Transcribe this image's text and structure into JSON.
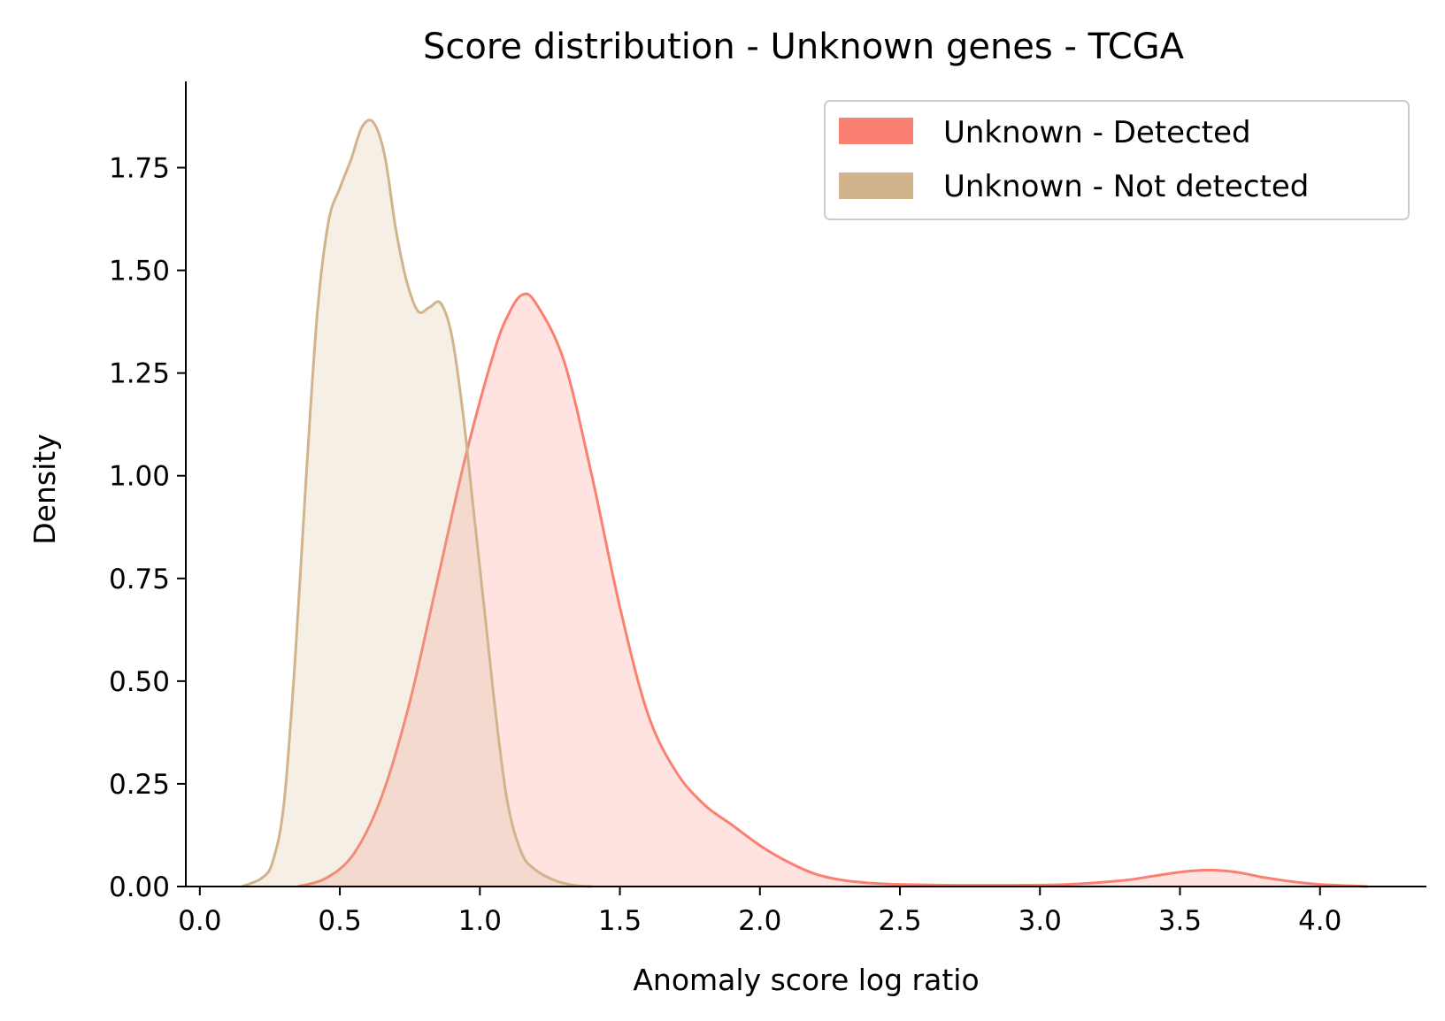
{
  "chart_data": {
    "type": "area",
    "title": "Score distribution - Unknown genes - TCGA",
    "xlabel": "Anomaly score log ratio",
    "ylabel": "Density",
    "xlim": [
      -0.05,
      4.38
    ],
    "ylim": [
      0,
      1.96
    ],
    "xticks": [
      0.0,
      0.5,
      1.0,
      1.5,
      2.0,
      2.5,
      3.0,
      3.5,
      4.0
    ],
    "xtick_labels": [
      "0.0",
      "0.5",
      "1.0",
      "1.5",
      "2.0",
      "2.5",
      "3.0",
      "3.5",
      "4.0"
    ],
    "yticks": [
      0.0,
      0.25,
      0.5,
      0.75,
      1.0,
      1.25,
      1.5,
      1.75
    ],
    "ytick_labels": [
      "0.00",
      "0.25",
      "0.50",
      "0.75",
      "1.00",
      "1.25",
      "1.50",
      "1.75"
    ],
    "grid": false,
    "legend_position": "top-right",
    "series": [
      {
        "name": "Unknown - Detected",
        "color": "#fa8072",
        "x": [
          0.35,
          0.45,
          0.55,
          0.65,
          0.75,
          0.85,
          0.95,
          1.05,
          1.1,
          1.15,
          1.2,
          1.3,
          1.4,
          1.5,
          1.6,
          1.7,
          1.8,
          1.9,
          2.0,
          2.1,
          2.2,
          2.3,
          2.4,
          2.5,
          2.7,
          2.9,
          3.1,
          3.3,
          3.4,
          3.5,
          3.6,
          3.7,
          3.8,
          3.9,
          4.0,
          4.1,
          4.17
        ],
        "y": [
          0.0,
          0.02,
          0.08,
          0.22,
          0.45,
          0.75,
          1.05,
          1.3,
          1.39,
          1.44,
          1.42,
          1.28,
          1.0,
          0.68,
          0.42,
          0.28,
          0.2,
          0.15,
          0.1,
          0.06,
          0.03,
          0.015,
          0.008,
          0.005,
          0.003,
          0.003,
          0.005,
          0.015,
          0.025,
          0.035,
          0.04,
          0.035,
          0.022,
          0.012,
          0.005,
          0.002,
          0.0
        ]
      },
      {
        "name": "Unknown - Not detected",
        "color": "#d2b48c",
        "x": [
          0.15,
          0.22,
          0.26,
          0.3,
          0.34,
          0.38,
          0.42,
          0.46,
          0.5,
          0.54,
          0.58,
          0.62,
          0.66,
          0.7,
          0.74,
          0.78,
          0.82,
          0.86,
          0.9,
          0.94,
          0.98,
          1.02,
          1.06,
          1.1,
          1.15,
          1.2,
          1.25,
          1.3,
          1.35,
          1.4
        ],
        "y": [
          0.0,
          0.02,
          0.06,
          0.2,
          0.55,
          1.0,
          1.4,
          1.62,
          1.7,
          1.77,
          1.85,
          1.86,
          1.78,
          1.6,
          1.47,
          1.4,
          1.41,
          1.42,
          1.34,
          1.15,
          0.9,
          0.65,
          0.4,
          0.2,
          0.08,
          0.04,
          0.02,
          0.008,
          0.002,
          0.0
        ]
      }
    ]
  }
}
